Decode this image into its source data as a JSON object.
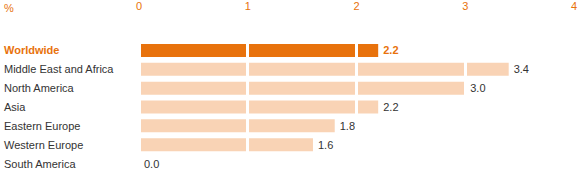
{
  "chart_data": {
    "type": "bar",
    "orientation": "horizontal",
    "xlabel": "%",
    "categories": [
      "Worldwide",
      "Middle East and Africa",
      "North America",
      "Asia",
      "Eastern Europe",
      "Western Europe",
      "South America"
    ],
    "values": [
      2.2,
      3.4,
      3.0,
      2.2,
      1.8,
      1.6,
      0.0
    ],
    "value_labels": [
      "2.2",
      "3.4",
      "3.0",
      "2.2",
      "1.8",
      "1.6",
      "0.0"
    ],
    "colors": [
      "#e8720c",
      "#f9d3b5",
      "#f9d3b5",
      "#f9d3b5",
      "#f9d3b5",
      "#f9d3b5",
      "#f9d3b5"
    ],
    "xlim": [
      0,
      4
    ],
    "xticks": [
      0,
      1,
      2,
      3,
      4
    ],
    "grid": true,
    "data_labels": true
  }
}
